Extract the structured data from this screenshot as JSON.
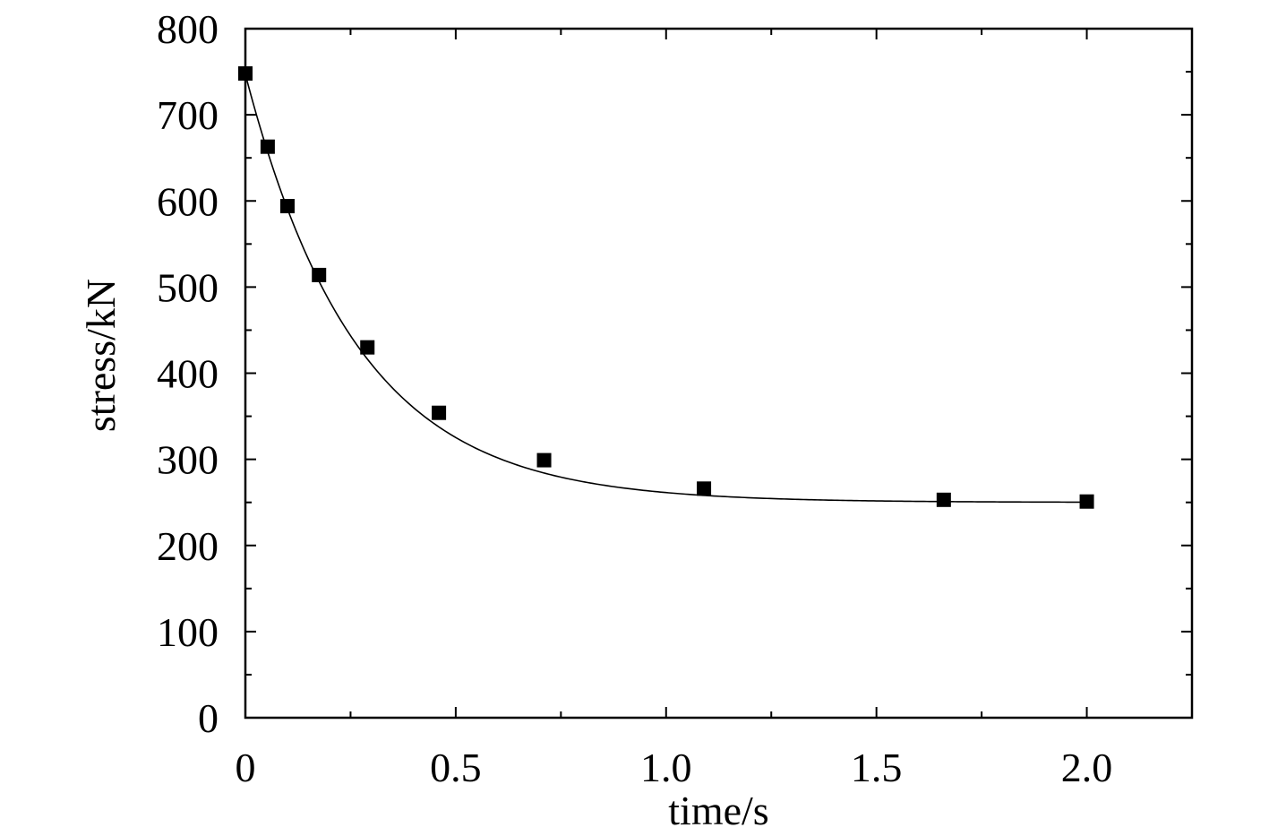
{
  "chart_data": {
    "type": "scatter",
    "title": "",
    "xlabel": "time/s",
    "ylabel": "stress/kN",
    "xlim": [
      0,
      2.25
    ],
    "ylim": [
      0,
      800
    ],
    "x_ticks": [
      0,
      0.5,
      1.0,
      1.5,
      2.0
    ],
    "x_tick_labels": [
      "0",
      "0.5",
      "1.0",
      "1.5",
      "2.0"
    ],
    "y_ticks": [
      0,
      100,
      200,
      300,
      400,
      500,
      600,
      700,
      800
    ],
    "y_tick_labels": [
      "0",
      "100",
      "200",
      "300",
      "400",
      "500",
      "600",
      "700",
      "800"
    ],
    "grid": false,
    "legend": "none",
    "series": [
      {
        "marker": "square",
        "color": "#000000",
        "x": [
          0.0,
          0.053,
          0.1,
          0.175,
          0.29,
          0.46,
          0.71,
          1.09,
          1.66,
          2.0
        ],
        "y": [
          748,
          663,
          594,
          514,
          430,
          354,
          299,
          266,
          253,
          251
        ]
      }
    ],
    "fit_curve": {
      "color": "#000000",
      "model": "exponential_decay",
      "y0": 250,
      "A": 497,
      "tau": 0.265
    }
  }
}
